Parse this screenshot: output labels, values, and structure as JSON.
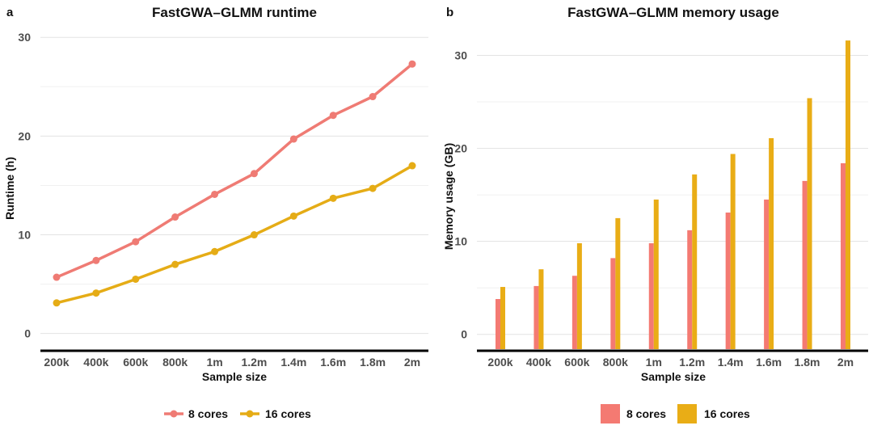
{
  "chart_data": [
    {
      "panel": "a",
      "type": "line",
      "title": "FastGWA–GLMM runtime",
      "xlabel": "Sample size",
      "ylabel": "Runtime (h)",
      "categories": [
        "200k",
        "400k",
        "600k",
        "800k",
        "1m",
        "1.2m",
        "1.4m",
        "1.6m",
        "1.8m",
        "2m"
      ],
      "ylim": [
        -1.5,
        31
      ],
      "yticks": [
        0,
        10,
        20,
        30
      ],
      "series": [
        {
          "name": "8 cores",
          "color": "#ef7b74",
          "values": [
            5.7,
            7.4,
            9.3,
            11.8,
            14.1,
            16.2,
            19.7,
            22.1,
            24.0,
            27.3
          ]
        },
        {
          "name": "16 cores",
          "color": "#e5ac16",
          "values": [
            3.1,
            4.1,
            5.5,
            7.0,
            8.3,
            10.0,
            11.9,
            13.7,
            14.7,
            17.0
          ]
        }
      ],
      "grid": true,
      "legend_position": "bottom"
    },
    {
      "panel": "b",
      "type": "bar",
      "title": "FastGWA–GLMM memory usage",
      "xlabel": "Sample size",
      "ylabel": "Memory usage (GB)",
      "categories": [
        "200k",
        "400k",
        "600k",
        "800k",
        "1m",
        "1.2m",
        "1.4m",
        "1.6m",
        "1.8m",
        "2m"
      ],
      "ylim": [
        -1.5,
        33
      ],
      "yticks": [
        0,
        10,
        20,
        30
      ],
      "series": [
        {
          "name": "8 cores",
          "color": "#f47a72",
          "values": [
            3.8,
            5.2,
            6.3,
            8.2,
            9.8,
            11.2,
            13.1,
            14.5,
            16.5,
            18.4
          ]
        },
        {
          "name": "16 cores",
          "color": "#e9ad16",
          "values": [
            5.1,
            7.0,
            9.8,
            12.5,
            14.5,
            17.2,
            19.4,
            21.1,
            25.4,
            31.6
          ]
        }
      ],
      "grid": true,
      "legend_position": "bottom"
    }
  ]
}
